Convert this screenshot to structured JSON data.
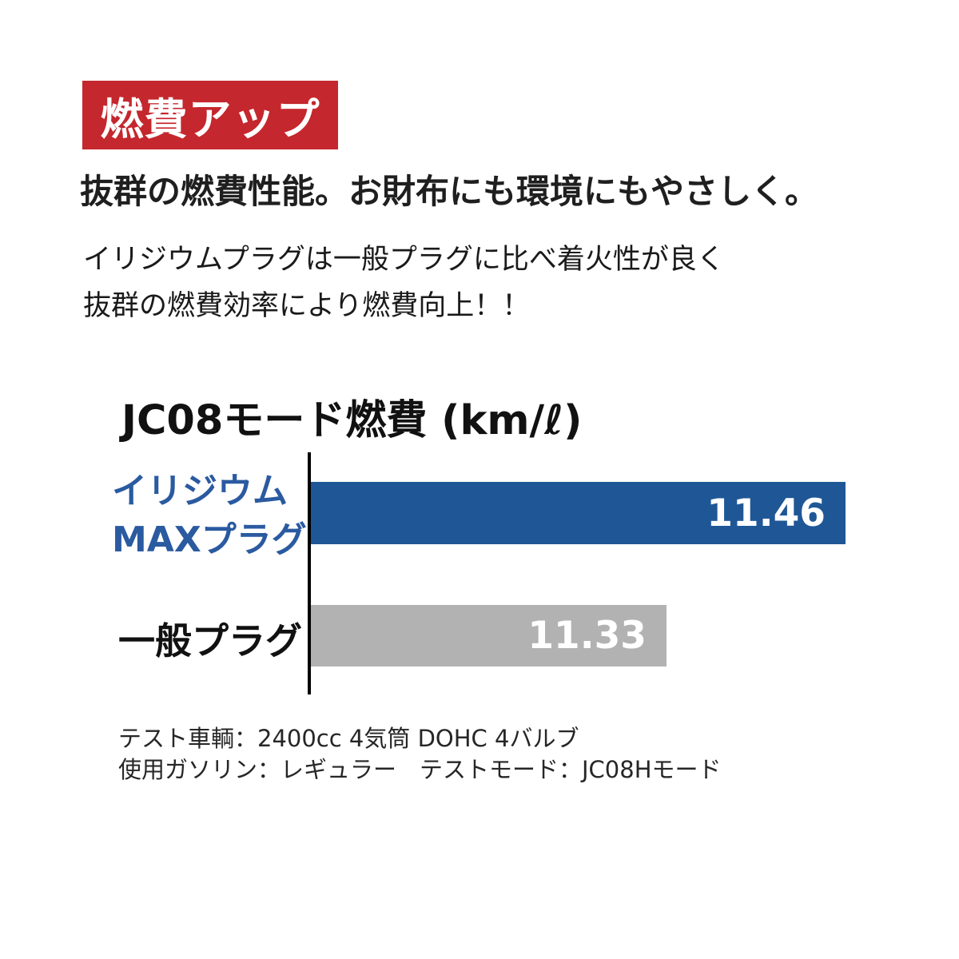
{
  "badge": {
    "label": "燃費アップ",
    "bg_color": "#C4272D",
    "text_color": "#FFFFFF"
  },
  "headline": "抜群の燃費性能。お財布にも環境にもやさしく。",
  "description_lines": [
    "イリジウムプラグは一般プラグに比べ着火性が良く",
    "抜群の燃費効率により燃費向上！！"
  ],
  "chart_data": {
    "type": "bar",
    "orientation": "horizontal",
    "title": "JC08モード燃費 (km/ℓ)",
    "unit": "km/ℓ",
    "categories": [
      "イリジウムMAXプラグ",
      "一般プラグ"
    ],
    "category_label_lines": [
      [
        "イリジウム",
        "MAXプラグ"
      ],
      [
        "一般プラグ"
      ]
    ],
    "values": [
      11.46,
      11.33
    ],
    "value_labels": [
      "11.46",
      "11.33"
    ],
    "bar_colors": [
      "#1F5796",
      "#B2B2B2"
    ],
    "category_label_colors": [
      "#2A5AA0",
      "#111111"
    ],
    "value_label_position": "inside-end",
    "axis_baseline": {
      "visible": true,
      "color": "#000000"
    },
    "grid": "off",
    "legend": "none",
    "note": "bar lengths are not zero-based (truncated scale)"
  },
  "footnotes": [
    "テスト車輌：2400cc 4気筒 DOHC 4バルブ",
    "使用ガソリン：レギュラー　テストモード：JC08Hモード"
  ]
}
